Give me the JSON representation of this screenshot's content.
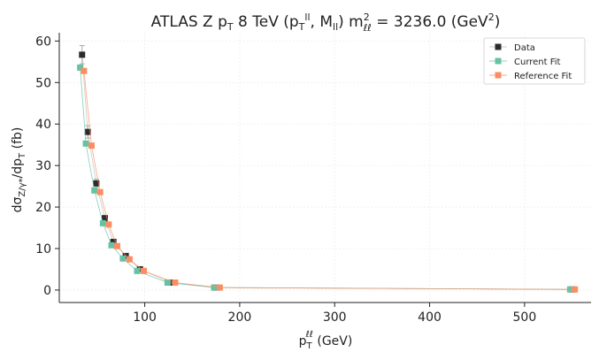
{
  "chart_data": {
    "type": "scatter",
    "title": "ATLAS Z p_T 8 TeV (p_T^{ll}, M_{ll}) m^2_{ℓℓ} = 3236.0 (GeV^2)",
    "xlabel": "p_T^{ℓℓ} (GeV)",
    "ylabel": "dσ_{Z/γ*}/dp_T (fb)",
    "xlim": [
      10,
      570
    ],
    "ylim": [
      -3,
      62
    ],
    "xticks": [
      100,
      200,
      300,
      400,
      500
    ],
    "yticks": [
      0,
      10,
      20,
      30,
      40,
      50,
      60
    ],
    "grid": true,
    "legend_position": "top-right",
    "series": [
      {
        "name": "Data",
        "color": "#2b2b2b",
        "line_color": "#bdbdbd",
        "x": [
          34,
          40,
          49,
          58,
          67,
          80,
          95,
          127,
          175,
          550
        ],
        "y": [
          56.7,
          38.1,
          25.7,
          17.3,
          11.6,
          8.2,
          5.0,
          1.8,
          0.6,
          0.15
        ],
        "yerr": [
          2.2,
          1.5,
          1.0,
          0.7,
          0.5,
          0.35,
          0.25,
          0.1,
          0.05,
          0.02
        ]
      },
      {
        "name": "Current Fit",
        "color": "#66c2a5",
        "x": [
          32,
          38,
          47,
          56,
          65,
          77,
          92,
          124,
          173,
          548
        ],
        "y": [
          53.6,
          35.3,
          24.0,
          16.1,
          10.8,
          7.6,
          4.6,
          1.8,
          0.6,
          0.15
        ]
      },
      {
        "name": "Reference Fit",
        "color": "#fc8d62",
        "x": [
          36,
          44,
          53,
          62,
          71,
          84,
          99,
          132,
          179,
          553
        ],
        "y": [
          52.8,
          34.8,
          23.6,
          15.8,
          10.6,
          7.4,
          4.6,
          1.8,
          0.6,
          0.15
        ]
      }
    ]
  }
}
